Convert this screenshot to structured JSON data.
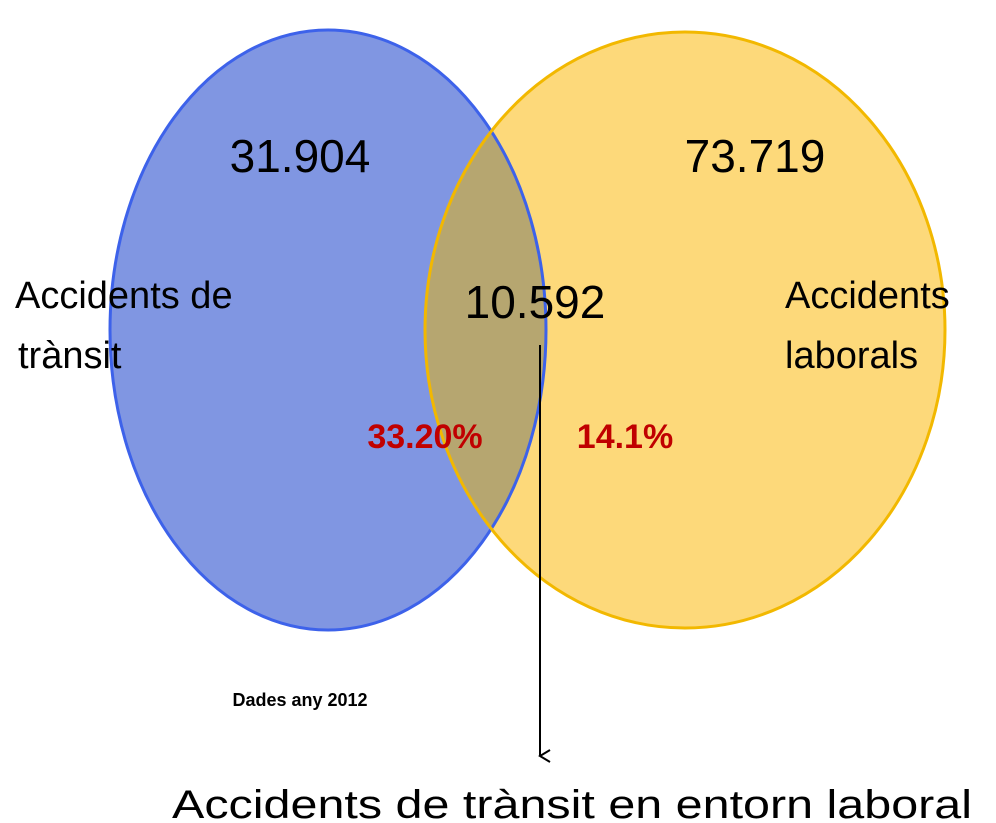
{
  "sets": [
    {
      "label_lines": [
        "Accidents de",
        "trànsit"
      ],
      "count": "31.904",
      "share": "33.20%"
    },
    {
      "label_lines": [
        "Accidents",
        "laborals"
      ],
      "count": "73.719",
      "share": "14.1%"
    }
  ],
  "intersection": {
    "count": "10.592"
  },
  "note": "Dades any 2012",
  "arrow_label": "Accidents de trànsit en entorn laboral"
}
